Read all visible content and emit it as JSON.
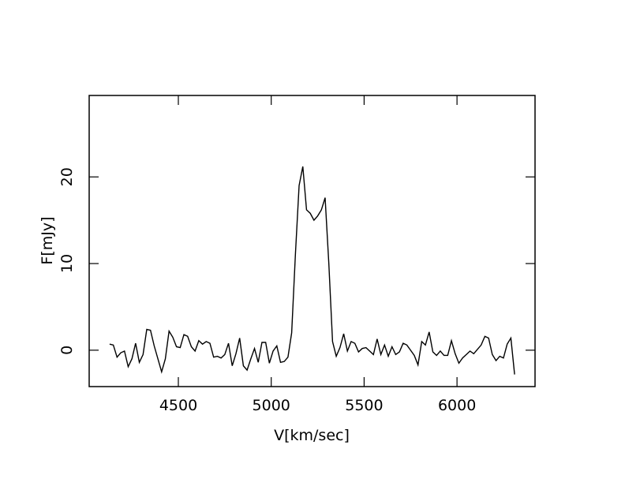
{
  "chart_data": {
    "type": "line",
    "x_label": "V[km/sec]",
    "y_label": "F[mJy]",
    "x": [
      4130,
      4150,
      4170,
      4190,
      4210,
      4230,
      4250,
      4270,
      4290,
      4310,
      4330,
      4350,
      4370,
      4390,
      4410,
      4430,
      4450,
      4470,
      4490,
      4510,
      4530,
      4550,
      4570,
      4590,
      4610,
      4630,
      4650,
      4670,
      4690,
      4710,
      4730,
      4750,
      4770,
      4790,
      4810,
      4830,
      4850,
      4870,
      4890,
      4910,
      4930,
      4950,
      4970,
      4990,
      5010,
      5030,
      5050,
      5070,
      5090,
      5110,
      5130,
      5150,
      5170,
      5190,
      5210,
      5230,
      5250,
      5270,
      5290,
      5310,
      5330,
      5350,
      5370,
      5390,
      5410,
      5430,
      5450,
      5470,
      5490,
      5510,
      5530,
      5550,
      5570,
      5590,
      5610,
      5630,
      5650,
      5670,
      5690,
      5710,
      5730,
      5750,
      5770,
      5790,
      5810,
      5830,
      5850,
      5870,
      5890,
      5910,
      5930,
      5950,
      5970,
      5990,
      6010,
      6030,
      6050,
      6070,
      6090,
      6110,
      6130,
      6150,
      6170,
      6190,
      6210,
      6230,
      6250,
      6270,
      6290,
      6310
    ],
    "series": [
      {
        "color": "#000000",
        "values": [
          0.7,
          0.6,
          -0.8,
          -0.3,
          -0.1,
          -1.9,
          -1.0,
          0.8,
          -1.4,
          -0.5,
          2.4,
          2.3,
          0.5,
          -1.0,
          -2.5,
          -1.0,
          2.2,
          1.5,
          0.4,
          0.3,
          1.8,
          1.6,
          0.4,
          -0.1,
          1.1,
          0.7,
          1.0,
          0.8,
          -0.8,
          -0.7,
          -0.9,
          -0.5,
          0.8,
          -1.8,
          -0.4,
          1.4,
          -1.8,
          -2.3,
          -1.0,
          0.2,
          -1.4,
          0.9,
          0.9,
          -1.5,
          -0.1,
          0.5,
          -1.4,
          -1.3,
          -0.8,
          2.0,
          11.0,
          19.0,
          21.2,
          16.2,
          15.8,
          15.0,
          15.5,
          16.2,
          17.6,
          10.0,
          1.0,
          -0.7,
          0.3,
          1.9,
          -0.1,
          1.0,
          0.8,
          -0.2,
          0.2,
          0.3,
          -0.1,
          -0.5,
          1.3,
          -0.5,
          0.6,
          -0.7,
          0.4,
          -0.5,
          -0.2,
          0.8,
          0.6,
          0.0,
          -0.6,
          -1.7,
          1.0,
          0.6,
          2.1,
          -0.2,
          -0.6,
          -0.1,
          -0.6,
          -0.6,
          1.1,
          -0.4,
          -1.5,
          -0.9,
          -0.5,
          -0.1,
          -0.4,
          0.1,
          0.6,
          1.6,
          1.4,
          -0.5,
          -1.2,
          -0.7,
          -0.9,
          0.7,
          1.4,
          -2.8
        ]
      }
    ],
    "xlim": [
      4020,
      6420
    ],
    "ylim": [
      -4.2,
      29.4
    ],
    "xticks": [
      4500,
      5000,
      5500,
      6000
    ],
    "yticks": [
      0,
      10,
      20
    ]
  }
}
